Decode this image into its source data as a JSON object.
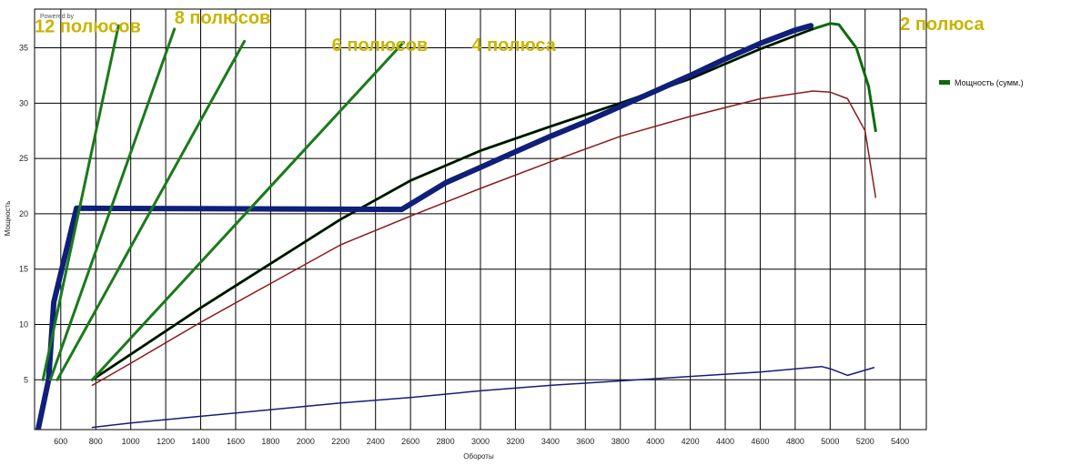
{
  "header": {
    "text": "Powered by"
  },
  "chart_data": {
    "type": "line",
    "xlabel": "Обороты",
    "ylabel": "Мощность",
    "xlim": [
      450,
      5550
    ],
    "ylim": [
      0.5,
      38.5
    ],
    "xticks": [
      600,
      800,
      1000,
      1200,
      1400,
      1600,
      1800,
      2000,
      2200,
      2400,
      2600,
      2800,
      3000,
      3200,
      3400,
      3600,
      3800,
      4000,
      4200,
      4400,
      4600,
      4800,
      5000,
      5200,
      5400
    ],
    "yticks": [
      5,
      10,
      15,
      20,
      25,
      30,
      35
    ],
    "grid": true,
    "legend": {
      "position": "right",
      "entries": [
        "Мощность (сумм.)"
      ]
    },
    "series": [
      {
        "name": "Мощность (сумм.)",
        "color": "#0a6b0a",
        "width": 3,
        "x": [
          780,
          1000,
          1400,
          1800,
          2200,
          2600,
          3000,
          3400,
          3800,
          4200,
          4600,
          4900,
          5000,
          5050,
          5150,
          5220,
          5260
        ],
        "y": [
          5.0,
          7.3,
          11.5,
          15.5,
          19.5,
          23.0,
          25.7,
          27.9,
          30.0,
          32.2,
          34.9,
          36.7,
          37.2,
          37.1,
          35.0,
          31.5,
          27.5
        ]
      },
      {
        "color": "#000000",
        "width": 2,
        "x": [
          780,
          1000,
          1400,
          1800,
          2200,
          2600,
          3000,
          3400,
          3800,
          4200,
          4600,
          4900
        ],
        "y": [
          5.0,
          7.3,
          11.5,
          15.5,
          19.5,
          23.0,
          25.7,
          27.9,
          30.0,
          32.2,
          34.9,
          36.7
        ]
      },
      {
        "color": "#8b1a1a",
        "width": 1.5,
        "x": [
          780,
          1000,
          1400,
          1800,
          2200,
          2600,
          3000,
          3400,
          3800,
          4200,
          4600,
          4900,
          5000,
          5100,
          5200,
          5260
        ],
        "y": [
          4.5,
          6.5,
          10.2,
          13.7,
          17.2,
          19.8,
          22.3,
          24.7,
          27.0,
          28.8,
          30.4,
          31.1,
          31.0,
          30.4,
          27.5,
          21.5
        ]
      },
      {
        "color": "#1a1a7a",
        "width": 1.5,
        "x": [
          780,
          1000,
          1400,
          1800,
          2200,
          2600,
          3000,
          3400,
          3800,
          4200,
          4600,
          4950,
          5000,
          5100,
          5250
        ],
        "y": [
          0.7,
          1.1,
          1.7,
          2.3,
          2.9,
          3.4,
          4.0,
          4.5,
          4.9,
          5.3,
          5.7,
          6.2,
          6.0,
          5.4,
          6.1
        ]
      },
      {
        "color": "#0f1f7a",
        "width": 6,
        "x": [
          450,
          530,
          560,
          690,
          2550,
          2800,
          3000,
          3200,
          3400,
          3600,
          3800,
          4000,
          4200,
          4400,
          4600,
          4800,
          4890
        ],
        "y": [
          -1.0,
          5.0,
          12.0,
          20.5,
          20.4,
          22.8,
          24.2,
          25.6,
          27.0,
          28.3,
          29.7,
          31.1,
          32.5,
          34.0,
          35.4,
          36.6,
          37.0
        ]
      },
      {
        "color": "#1a7a1a",
        "width": 3,
        "x": [
          498,
          930
        ],
        "y": [
          5.0,
          37.0
        ]
      },
      {
        "color": "#1a7a1a",
        "width": 3,
        "x": [
          540,
          1250
        ],
        "y": [
          5.0,
          36.7
        ]
      },
      {
        "color": "#1a7a1a",
        "width": 3,
        "x": [
          580,
          1650
        ],
        "y": [
          5.0,
          35.6
        ]
      },
      {
        "color": "#1a7a1a",
        "width": 3,
        "x": [
          780,
          2560
        ],
        "y": [
          5.0,
          35.5
        ]
      }
    ],
    "annotations": [
      {
        "text": "12 полюсов",
        "x": 450,
        "y": 36.4
      },
      {
        "text": "8 полюсов",
        "x": 1250,
        "y": 37.2
      },
      {
        "text": "6 полюсов",
        "x": 2150,
        "y": 34.7
      },
      {
        "text": "4 полюса",
        "x": 2950,
        "y": 34.7
      },
      {
        "text": "2 полюса",
        "x": 5400,
        "y": 36.6
      }
    ]
  }
}
